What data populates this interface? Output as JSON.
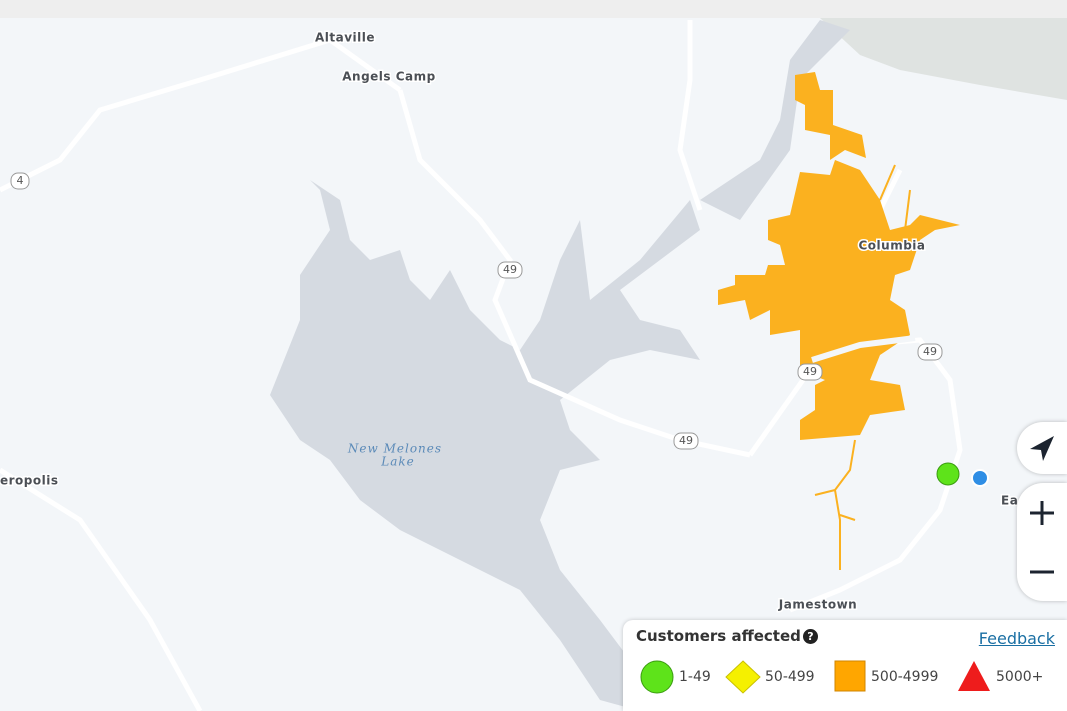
{
  "map": {
    "places": [
      "Altaville",
      "Angels Camp",
      "Columbia",
      "Jamestown",
      "eropolis",
      "Ea"
    ],
    "lake": [
      "New Melones",
      "Lake"
    ],
    "road_shields": [
      "4",
      "49",
      "49",
      "49",
      "49"
    ]
  },
  "legend": {
    "title": "Customers affected",
    "help": "?",
    "link": "Feedback",
    "items": [
      "1-49",
      "50-499",
      "500-4999",
      "5000+"
    ]
  }
}
